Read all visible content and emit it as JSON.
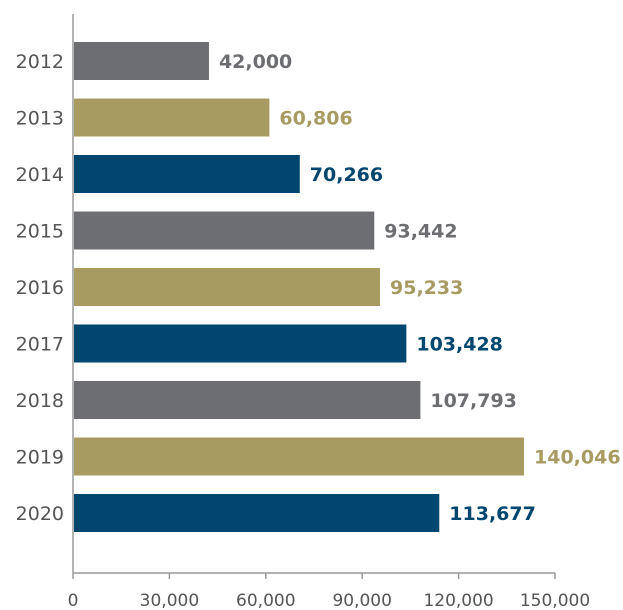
{
  "chart_data": {
    "type": "bar",
    "orientation": "horizontal",
    "categories": [
      "2012",
      "2013",
      "2014",
      "2015",
      "2016",
      "2017",
      "2018",
      "2019",
      "2020"
    ],
    "values": [
      42000,
      60806,
      70266,
      93442,
      95233,
      103428,
      107793,
      140046,
      113677
    ],
    "value_labels": [
      "42,000",
      "60,806",
      "70,266",
      "93,442",
      "95,233",
      "103,428",
      "107,793",
      "140,046",
      "113,677"
    ],
    "bar_colors": [
      "#6d6e71",
      "#a89b62",
      "#00466e",
      "#6d6e71",
      "#a89b62",
      "#00466e",
      "#6d6e71",
      "#a89b62",
      "#00466e"
    ],
    "x_ticks": [
      0,
      30000,
      60000,
      90000,
      120000,
      150000
    ],
    "x_tick_labels": [
      "0",
      "30,000",
      "60,000",
      "90,000",
      "120,000",
      "150,000"
    ],
    "xlim": [
      0,
      150000
    ],
    "grid": false
  }
}
